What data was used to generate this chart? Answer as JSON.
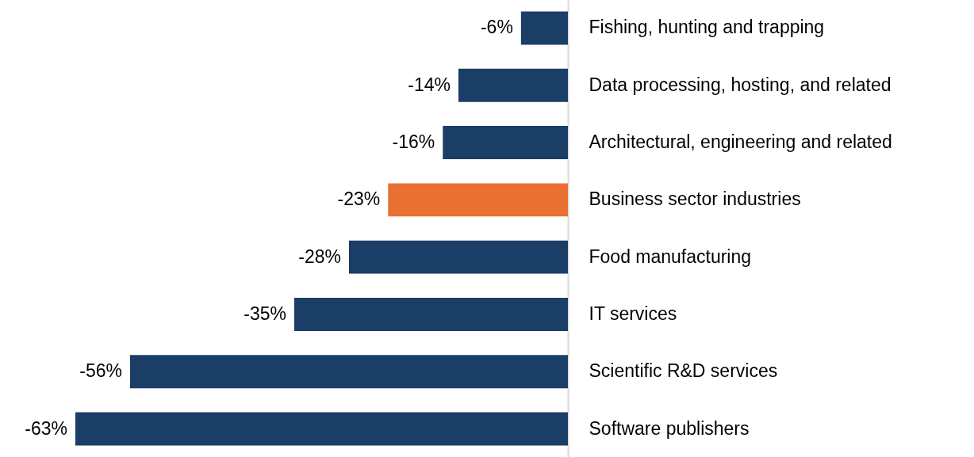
{
  "chart_data": {
    "type": "bar",
    "orientation": "horizontal",
    "categories": [
      "Fishing, hunting and trapping",
      "Data processing, hosting, and related",
      "Architectural, engineering and related",
      "Business sector industries",
      "Food manufacturing",
      "IT services",
      "Scientific R&D services",
      "Software publishers"
    ],
    "values": [
      -6,
      -14,
      -16,
      -23,
      -28,
      -35,
      -56,
      -63
    ],
    "value_labels": [
      "-6%",
      "-14%",
      "-16%",
      "-23%",
      "-28%",
      "-35%",
      "-56%",
      "-63%"
    ],
    "colors": [
      "#1a3e66",
      "#1a3e66",
      "#1a3e66",
      "#e97132",
      "#1a3e66",
      "#1a3e66",
      "#1a3e66",
      "#1a3e66"
    ]
  }
}
